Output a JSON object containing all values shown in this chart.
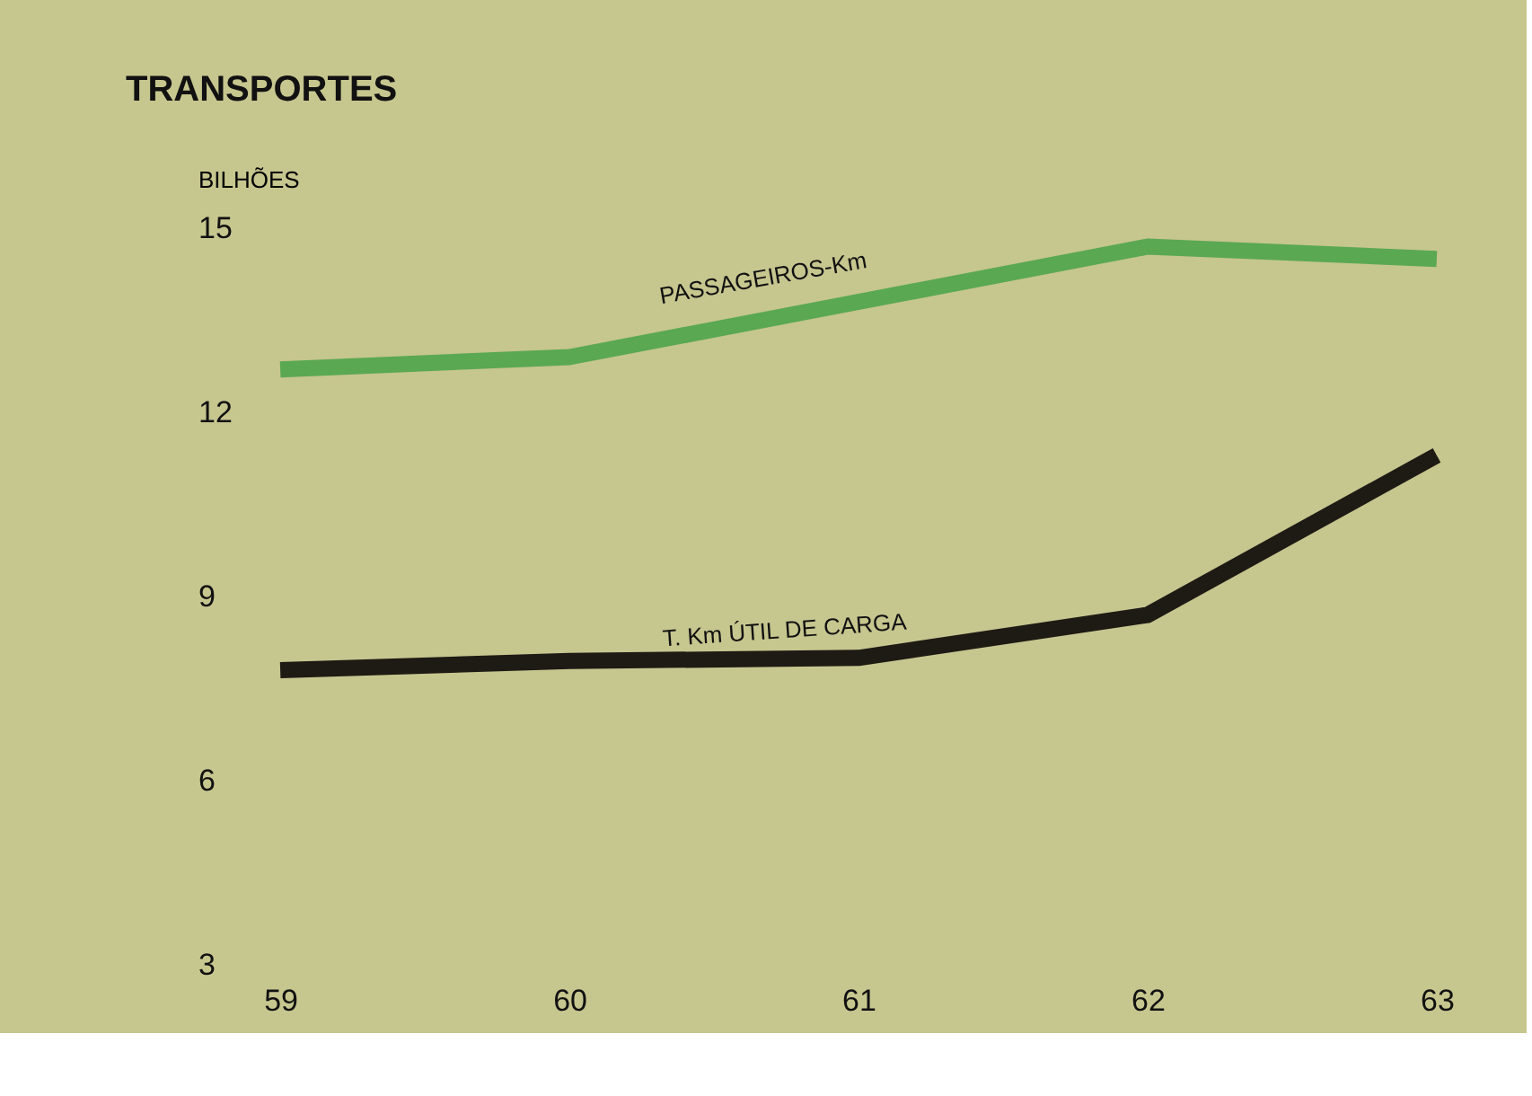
{
  "chart_data": {
    "type": "line",
    "title": "TRANSPORTES",
    "ylabel": "BILHÕES",
    "categories": [
      "59",
      "60",
      "61",
      "62",
      "63"
    ],
    "ylim": [
      3,
      15
    ],
    "yticks": [
      3,
      6,
      9,
      12,
      15
    ],
    "grid": false,
    "marker": "none",
    "line_style": "solid",
    "series": [
      {
        "name": "PASSAGEIROS-Km",
        "color": "#5aa852",
        "values": [
          12.7,
          12.9,
          13.8,
          14.7,
          14.5
        ]
      },
      {
        "name": "T. Km ÚTIL DE CARGA",
        "color": "#1e1a14",
        "values": [
          7.8,
          7.95,
          8.0,
          8.7,
          11.3
        ]
      }
    ]
  }
}
